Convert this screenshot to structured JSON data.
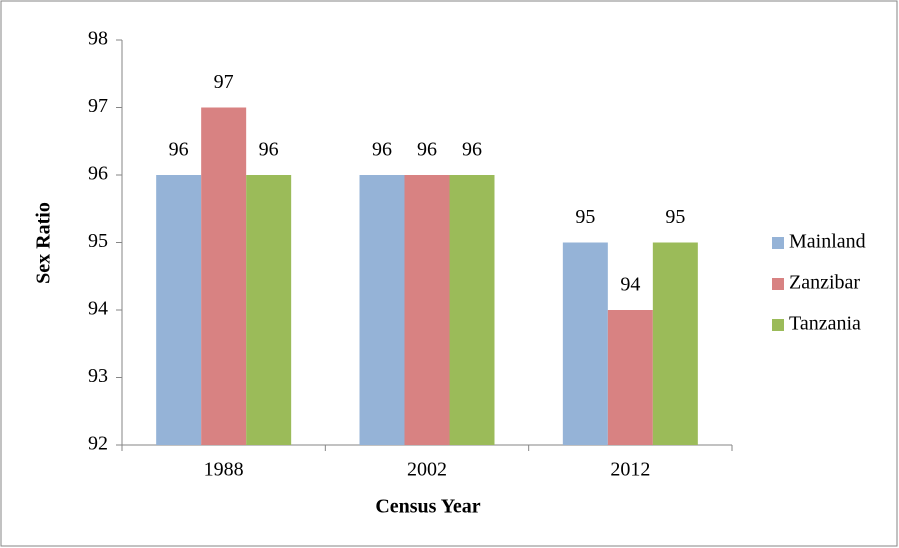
{
  "chart_data": {
    "type": "bar",
    "xlabel": "Census Year",
    "ylabel": "Sex Ratio",
    "categories": [
      "1988",
      "2002",
      "2012"
    ],
    "series": [
      {
        "name": "Mainland",
        "color": "#95b3d7",
        "values": [
          96,
          96,
          95
        ]
      },
      {
        "name": "Zanzibar",
        "color": "#d88282",
        "values": [
          97,
          96,
          94
        ]
      },
      {
        "name": "Tanzania",
        "color": "#9bbb59",
        "values": [
          96,
          96,
          95
        ]
      }
    ],
    "ylim": [
      92,
      98
    ],
    "yticks": [
      92,
      93,
      94,
      95,
      96,
      97,
      98
    ],
    "grid": false,
    "legend": "right"
  }
}
